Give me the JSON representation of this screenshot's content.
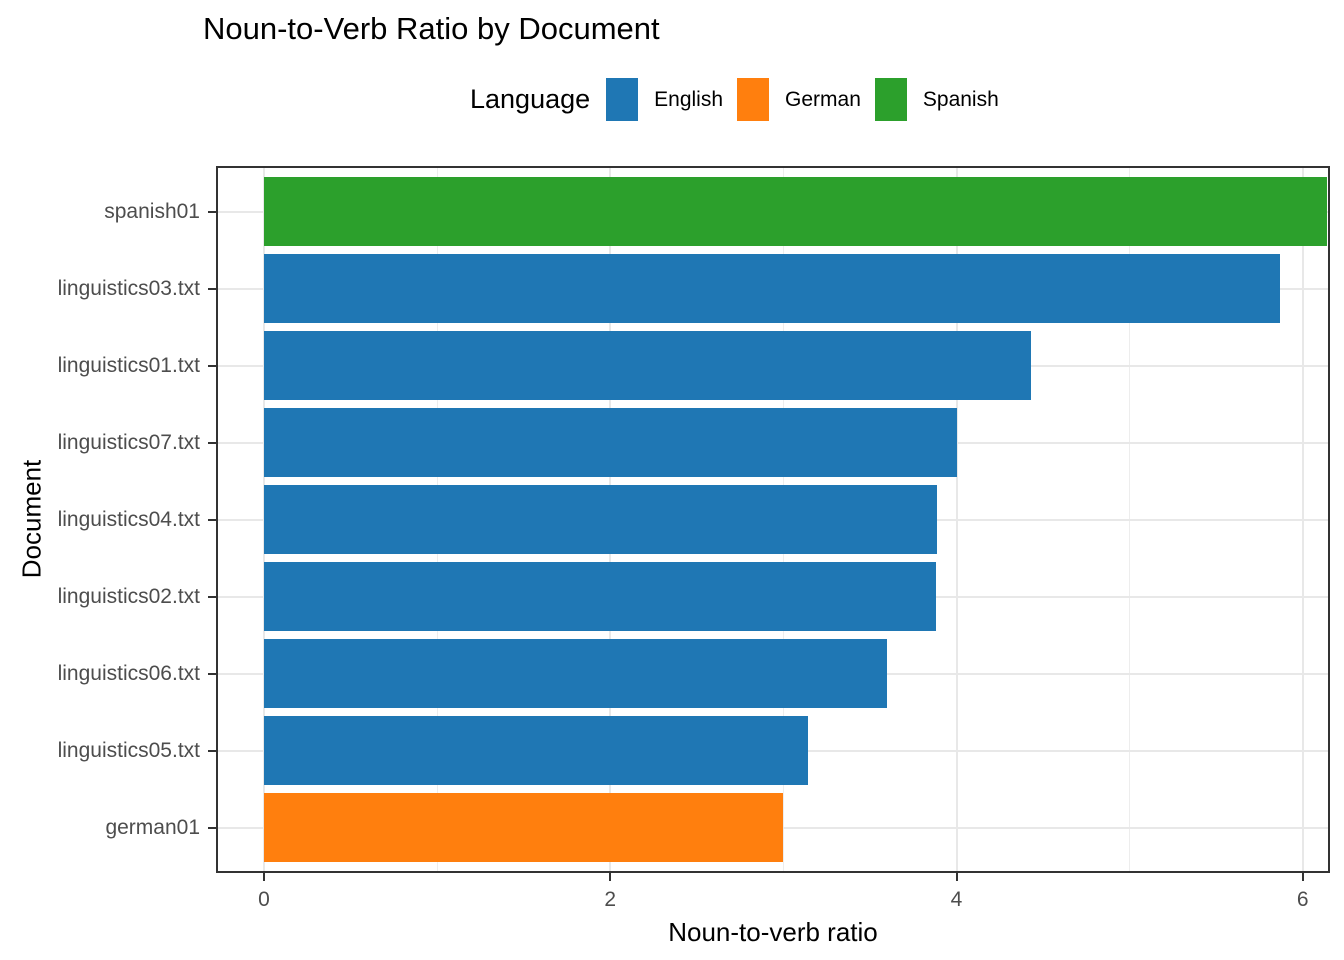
{
  "chart_data": {
    "type": "bar",
    "orientation": "horizontal",
    "title": "Noun-to-Verb Ratio by Document",
    "xlabel": "Noun-to-verb ratio",
    "ylabel": "Document",
    "legend": {
      "title": "Language",
      "position": "top",
      "entries": [
        {
          "label": "English",
          "color": "#1F77B4"
        },
        {
          "label": "German",
          "color": "#FF7F0E"
        },
        {
          "label": "Spanish",
          "color": "#2CA02C"
        }
      ]
    },
    "bars": [
      {
        "label": "spanish01",
        "language": "Spanish",
        "value": 6.14
      },
      {
        "label": "linguistics03.txt",
        "language": "English",
        "value": 5.87
      },
      {
        "label": "linguistics01.txt",
        "language": "English",
        "value": 4.43
      },
      {
        "label": "linguistics07.txt",
        "language": "English",
        "value": 4.0
      },
      {
        "label": "linguistics04.txt",
        "language": "English",
        "value": 3.89
      },
      {
        "label": "linguistics02.txt",
        "language": "English",
        "value": 3.88
      },
      {
        "label": "linguistics06.txt",
        "language": "English",
        "value": 3.6
      },
      {
        "label": "linguistics05.txt",
        "language": "English",
        "value": 3.14
      },
      {
        "label": "german01",
        "language": "German",
        "value": 3.0
      }
    ],
    "xlim": [
      -0.28,
      6.16
    ],
    "x_major_ticks": [
      0,
      2,
      4,
      6
    ],
    "x_minor_gridlines": [
      1,
      3,
      5
    ],
    "grid": true,
    "style": {
      "major_grid_color": "#E8E8E8",
      "minor_grid_color": "#EDEDED",
      "panel_border_color": "#333333",
      "tick_color": "#333333",
      "tick_label_color": "#4D4D4D",
      "background": "#FFFFFF"
    }
  }
}
